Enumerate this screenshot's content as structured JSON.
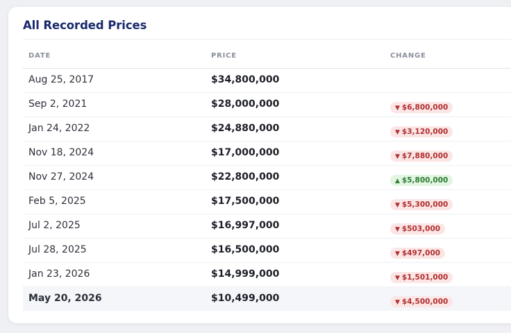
{
  "title": "All Recorded Prices",
  "columns": {
    "date": "DATE",
    "price": "PRICE",
    "change": "CHANGE"
  },
  "colors": {
    "down": "#b03030",
    "up": "#2e7d32",
    "title": "#1a2a6c"
  },
  "rows": [
    {
      "date": "Aug 25, 2017",
      "price": "$34,800,000",
      "change": "",
      "direction": ""
    },
    {
      "date": "Sep 2, 2021",
      "price": "$28,000,000",
      "change": "$6,800,000",
      "direction": "down"
    },
    {
      "date": "Jan 24, 2022",
      "price": "$24,880,000",
      "change": "$3,120,000",
      "direction": "down"
    },
    {
      "date": "Nov 18, 2024",
      "price": "$17,000,000",
      "change": "$7,880,000",
      "direction": "down"
    },
    {
      "date": "Nov 27, 2024",
      "price": "$22,800,000",
      "change": "$5,800,000",
      "direction": "up"
    },
    {
      "date": "Feb 5, 2025",
      "price": "$17,500,000",
      "change": "$5,300,000",
      "direction": "down"
    },
    {
      "date": "Jul 2, 2025",
      "price": "$16,997,000",
      "change": "$503,000",
      "direction": "down"
    },
    {
      "date": "Jul 28, 2025",
      "price": "$16,500,000",
      "change": "$497,000",
      "direction": "down"
    },
    {
      "date": "Jan 23, 2026",
      "price": "$14,999,000",
      "change": "$1,501,000",
      "direction": "down"
    },
    {
      "date": "May 20, 2026",
      "price": "$10,499,000",
      "change": "$4,500,000",
      "direction": "down",
      "current": true
    }
  ]
}
